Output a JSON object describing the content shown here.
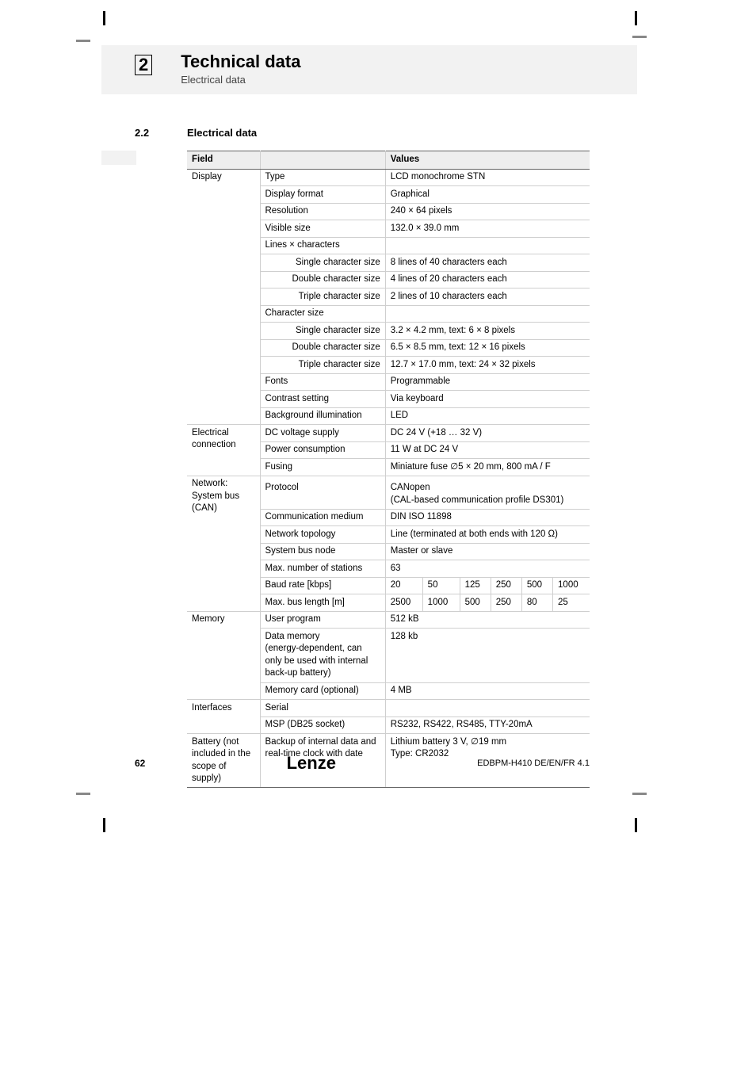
{
  "header": {
    "chapter_num": "2",
    "title": "Technical data",
    "subtitle": "Electrical data"
  },
  "section": {
    "num": "2.2",
    "title": "Electrical data"
  },
  "table": {
    "head_field": "Field",
    "head_values": "Values",
    "display": {
      "label": "Display",
      "type_l": "Type",
      "type_v": "LCD monochrome STN",
      "fmt_l": "Display format",
      "fmt_v": "Graphical",
      "res_l": "Resolution",
      "res_v": "240 × 64 pixels",
      "vis_l": "Visible size",
      "vis_v": "132.0 × 39.0 mm",
      "lxc_l": "Lines × characters",
      "scs_l": "Single character size",
      "scs_v": "8 lines of 40 characters each",
      "dcs_l": "Double character size",
      "dcs_v": "4 lines of 20 characters each",
      "tcs_l": "Triple character size",
      "tcs_v": "2 lines of 10 characters each",
      "cs_l": "Character size",
      "cs1_l": "Single character size",
      "cs1_v": "3.2 × 4.2 mm, text: 6 × 8 pixels",
      "cs2_l": "Double character size",
      "cs2_v": "6.5 × 8.5 mm, text: 12 × 16 pixels",
      "cs3_l": "Triple character size",
      "cs3_v": "12.7 × 17.0 mm, text: 24 × 32 pixels",
      "fonts_l": "Fonts",
      "fonts_v": "Programmable",
      "contrast_l": "Contrast setting",
      "contrast_v": "Via keyboard",
      "bgi_l": "Background illumination",
      "bgi_v": "LED"
    },
    "elec": {
      "label": "Electrical connection",
      "dcv_l": "DC voltage supply",
      "dcv_v": "DC 24 V (+18 … 32 V)",
      "pc_l": "Power consumption",
      "pc_v": "11 W at DC 24 V",
      "fuse_l": "Fusing",
      "fuse_v": "Miniature fuse ∅5 × 20 mm, 800 mA / F"
    },
    "net": {
      "label1": "Network:",
      "label2": "System bus (CAN)",
      "proto_l": "Protocol",
      "proto_v1": "CANopen",
      "proto_v2": "(CAL-based communication profile DS301)",
      "cm_l": "Communication medium",
      "cm_v": "DIN ISO 11898",
      "nt_l": "Network topology",
      "nt_v": "Line (terminated at both ends with 120 Ω)",
      "sbn_l": "System bus node",
      "sbn_v": "Master or slave",
      "mns_l": "Max. number of stations",
      "mns_v": "63",
      "baud_l": "Baud rate [kbps]",
      "baud_v": [
        "20",
        "50",
        "125",
        "250",
        "500",
        "1000"
      ],
      "mbl_l": "Max. bus length [m]",
      "mbl_v": [
        "2500",
        "1000",
        "500",
        "250",
        "80",
        "25"
      ]
    },
    "mem": {
      "label": "Memory",
      "up_l": "User program",
      "up_v": "512 kB",
      "dm_l": "Data memory\n(energy-dependent, can only be used with internal back-up battery)",
      "dm_v": "128 kb",
      "mc_l": "Memory card (optional)",
      "mc_v": "4 MB"
    },
    "iface": {
      "label": "Interfaces",
      "ser_l": "Serial",
      "msp_l": "MSP (DB25 socket)",
      "msp_v": "RS232, RS422, RS485, TTY-20mA"
    },
    "bat": {
      "label": "Battery (not included in the scope of supply)",
      "b_l": "Backup of internal data and real-time clock with date",
      "b_v1": "Lithium battery 3 V, ∅19 mm",
      "b_v2": "Type: CR2032"
    }
  },
  "footer": {
    "page": "62",
    "brand": "Lenze",
    "docid": "EDBPM-H410  DE/EN/FR  4.1"
  }
}
